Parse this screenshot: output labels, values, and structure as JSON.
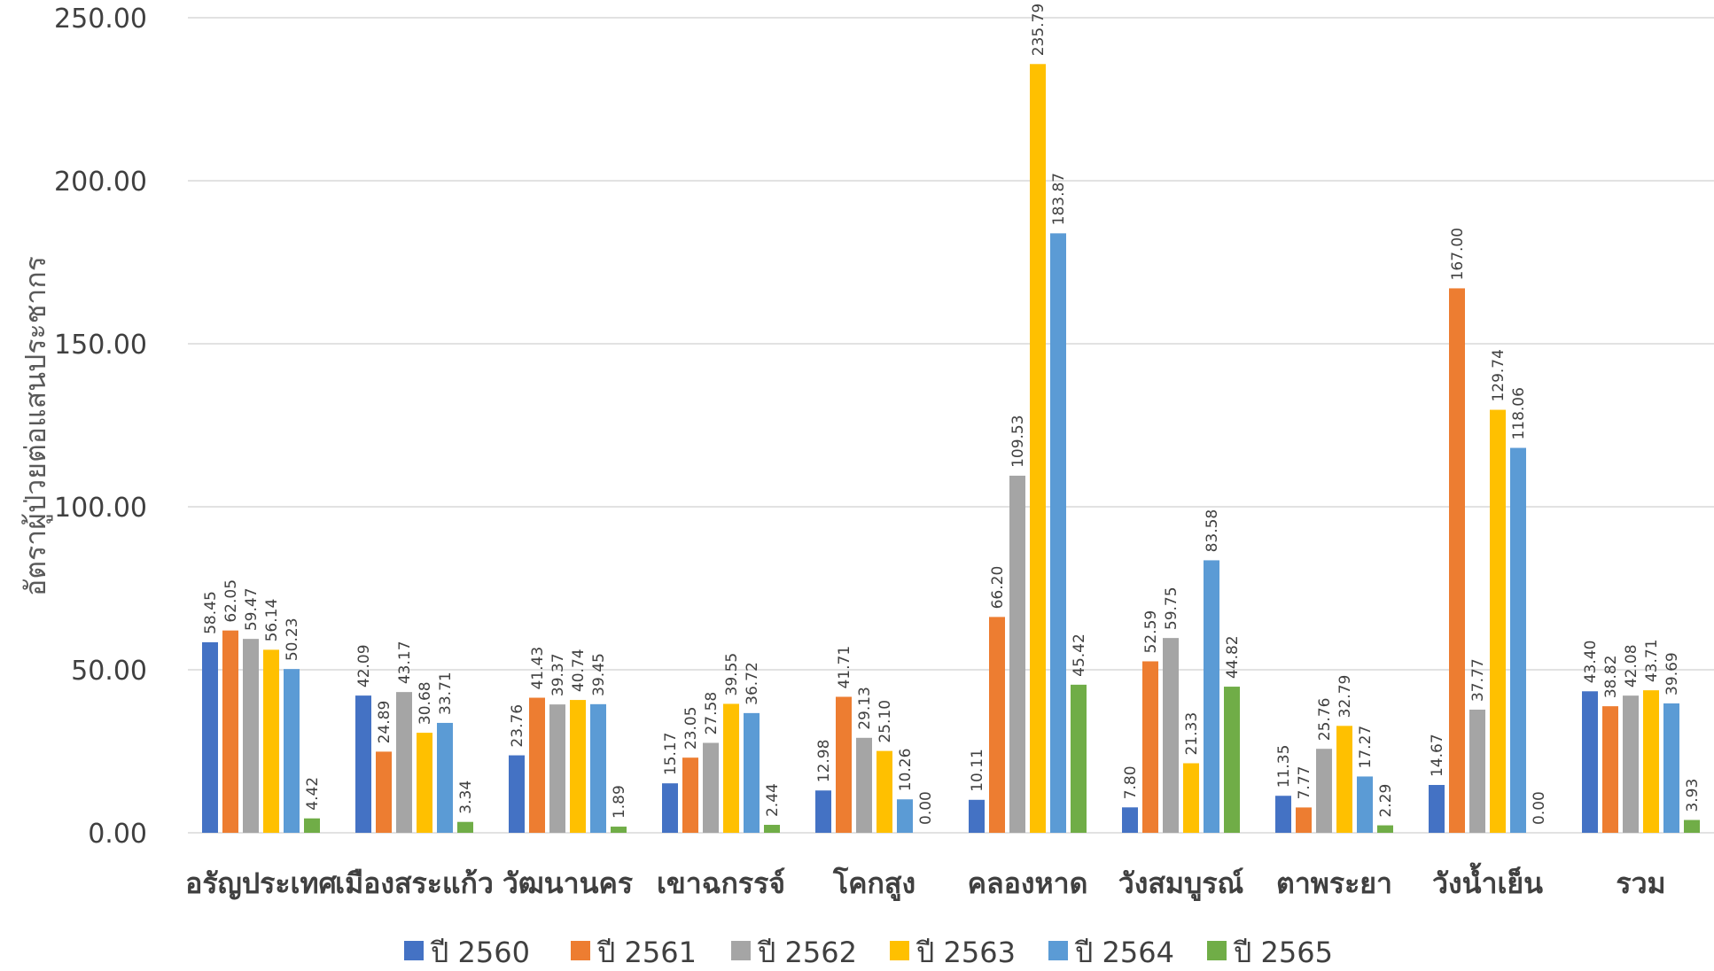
{
  "chart_data": {
    "type": "bar",
    "title": "",
    "xlabel": "",
    "ylabel": "อัตราผู้ป่วยต่อแสนประชากร",
    "ylim": [
      0,
      250
    ],
    "yticks": [
      "0.00",
      "50.00",
      "100.00",
      "150.00",
      "200.00",
      "250.00"
    ],
    "grid": true,
    "legend_position": "bottom",
    "categories": [
      "อรัญประเทศ",
      "เมืองสระแก้ว",
      "วัฒนานคร",
      "เขาฉกรรจ์",
      "โคกสูง",
      "คลองหาด",
      "วังสมบูรณ์",
      "ตาพระยา",
      "วังน้ำเย็น",
      "รวม"
    ],
    "series": [
      {
        "name": "ปี 2560",
        "color": "#4472c4",
        "values": [
          58.45,
          42.09,
          23.76,
          15.17,
          12.98,
          10.11,
          7.8,
          11.35,
          14.67,
          43.4
        ],
        "labels": [
          "58.45",
          "42.09",
          "23.76",
          "15.17",
          "12.98",
          "10.11",
          "7.80",
          "11.35",
          "14.67",
          "43.40"
        ]
      },
      {
        "name": "ปี 2561",
        "color": "#ed7d31",
        "values": [
          62.05,
          24.89,
          41.43,
          23.05,
          41.71,
          66.2,
          52.59,
          7.77,
          167.0,
          38.82
        ],
        "labels": [
          "62.05",
          "24.89",
          "41.43",
          "23.05",
          "41.71",
          "66.20",
          "52.59",
          "7.77",
          "167.00",
          "38.82"
        ]
      },
      {
        "name": "ปี 2562",
        "color": "#a5a5a5",
        "values": [
          59.47,
          43.17,
          39.37,
          27.58,
          29.13,
          109.53,
          59.75,
          25.76,
          37.77,
          42.08
        ],
        "labels": [
          "59.47",
          "43.17",
          "39.37",
          "27.58",
          "29.13",
          "109.53",
          "59.75",
          "25.76",
          "37.77",
          "42.08"
        ]
      },
      {
        "name": "ปี 2563",
        "color": "#ffc000",
        "values": [
          56.14,
          30.68,
          40.74,
          39.55,
          25.1,
          235.79,
          21.33,
          32.79,
          129.74,
          43.71
        ],
        "labels": [
          "56.14",
          "30.68",
          "40.74",
          "39.55",
          "25.10",
          "235.79",
          "21.33",
          "32.79",
          "129.74",
          "43.71"
        ]
      },
      {
        "name": "ปี 2564",
        "color": "#5b9bd5",
        "values": [
          50.23,
          33.71,
          39.45,
          36.72,
          10.26,
          183.87,
          83.58,
          17.27,
          118.06,
          39.69
        ],
        "labels": [
          "50.23",
          "33.71",
          "39.45",
          "36.72",
          "10.26",
          "183.87",
          "83.58",
          "17.27",
          "118.06",
          "39.69"
        ]
      },
      {
        "name": "ปี 2565",
        "color": "#70ad47",
        "values": [
          4.42,
          3.34,
          1.89,
          2.44,
          0.0,
          45.42,
          44.82,
          2.29,
          0.0,
          3.93
        ],
        "labels": [
          "4.42",
          "3.34",
          "1.89",
          "2.44",
          "0.00",
          "45.42",
          "44.82",
          "2.29",
          "0.00",
          "3.93"
        ]
      }
    ]
  }
}
